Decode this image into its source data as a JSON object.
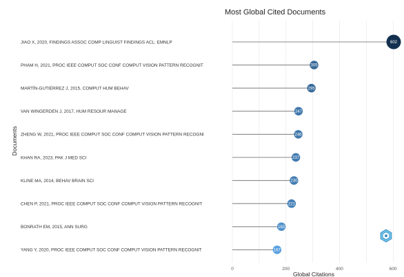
{
  "chart_data": {
    "type": "lollipop",
    "title": "Most Global Cited Documents",
    "xlabel": "Global Citations",
    "ylabel": "Documents",
    "xlim": [
      0,
      620
    ],
    "xticks": [
      0,
      200,
      400,
      600
    ],
    "categories": [
      "JIAO X, 2020, FINDINGS ASSOC COMP LINGUIST FINDINGS ACL: EMNLP",
      "PHAM H, 2021, PROC IEEE COMPUT SOC CONF COMPUT VISION PATTERN RECOGNIT",
      "MARTÍN-GUTIÉRREZ J, 2015, COMPUT HUM BEHAV",
      "VAN WINGERDEN J, 2017, HUM RESOUR MANAGE",
      "ZHENG W, 2021, PROC IEEE COMPUT SOC CONF COMPUT VISION PATTERN RECOGNI",
      "KHAN RA, 2023, PAK J MED SCI",
      "KLINE MA, 2014, BEHAV BRAIN SCI",
      "CHEN P, 2021, PROC IEEE COMPUT SOC CONF COMPUT VISION PATTERN RECOGNIT",
      "BONRATH EM, 2015, ANN SURG",
      "YANG Y, 2020, PROC IEEE COMPUT SOC CONF COMPUT VISION PATTERN RECOGNIT"
    ],
    "values": [
      602,
      305,
      295,
      247,
      246,
      237,
      230,
      221,
      183,
      167
    ],
    "point_labels": [
      "602",
      "305",
      "295",
      "247",
      "246",
      "237",
      "230",
      "221",
      "183",
      "167"
    ],
    "color_scale": {
      "low": "#5aa0e0",
      "high": "#13304f"
    },
    "grid": true,
    "legend": "none"
  },
  "badge": {
    "icon": "app-logo-icon"
  }
}
